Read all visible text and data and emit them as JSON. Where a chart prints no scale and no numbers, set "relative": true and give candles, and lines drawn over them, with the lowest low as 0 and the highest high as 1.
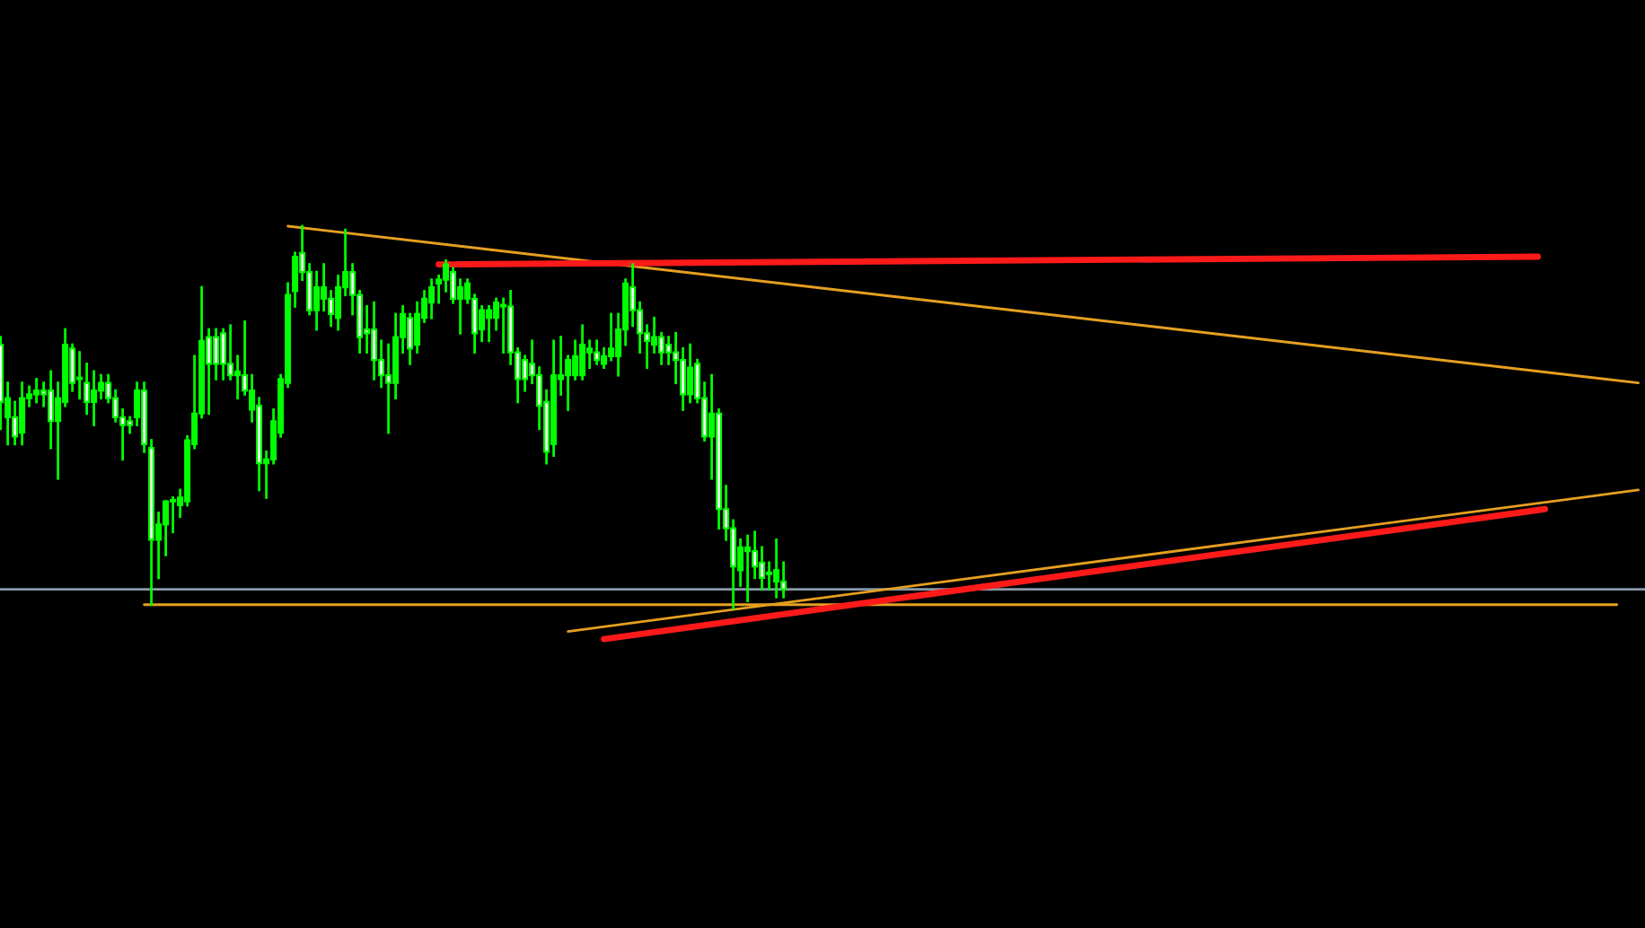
{
  "chart_data": {
    "type": "candlestick",
    "relative": true,
    "color": "#00ff00",
    "categories": [
      null,
      null,
      null,
      null,
      null,
      null,
      null,
      null,
      null,
      null,
      null,
      null,
      null,
      null,
      null,
      null,
      null,
      null,
      null,
      null,
      null,
      null,
      null,
      null,
      null,
      null,
      null,
      null,
      null,
      null,
      null,
      null,
      null,
      null,
      null,
      null,
      null,
      null,
      null,
      null,
      null,
      null,
      null,
      null,
      null,
      null,
      null,
      null,
      null,
      null,
      null,
      null,
      null,
      null,
      null,
      null,
      null,
      null,
      null,
      null,
      null,
      null,
      null,
      null,
      null,
      null,
      null,
      null,
      null,
      null,
      null,
      null,
      null,
      null,
      null,
      null,
      null,
      null,
      null,
      null,
      null,
      null,
      null,
      null,
      null,
      null,
      null,
      null,
      null,
      null,
      null,
      null,
      null,
      null,
      null,
      null,
      null,
      null,
      null,
      null,
      null,
      null,
      null,
      null,
      null,
      null,
      null,
      null,
      null,
      null,
      null,
      null,
      null,
      null,
      null,
      null,
      null,
      null,
      null,
      null,
      null,
      null,
      null,
      null,
      null,
      null,
      null,
      null,
      null,
      null,
      null,
      null,
      null,
      null,
      null,
      null,
      null,
      null,
      null,
      null,
      null,
      null,
      null,
      null,
      null,
      null,
      null,
      null,
      null,
      null,
      null,
      null,
      null,
      null,
      null,
      null,
      null,
      null,
      null,
      null,
      null,
      null,
      null,
      null,
      null,
      null,
      null,
      null,
      null,
      null,
      null,
      null,
      null,
      null,
      null,
      null,
      null,
      null,
      null,
      null,
      null,
      null,
      null,
      null,
      null,
      null,
      null,
      null,
      null,
      null,
      null,
      null,
      null,
      null,
      null,
      null,
      null,
      null,
      null,
      null,
      null,
      null,
      null,
      null,
      null,
      null,
      null,
      null,
      null,
      null,
      null,
      null,
      null,
      null,
      null,
      null,
      null,
      null,
      null,
      null,
      null,
      null,
      null,
      null,
      null,
      null,
      null,
      null,
      null
    ],
    "ohlc": [
      [
        0.69,
        0.71,
        0.47,
        0.54
      ],
      [
        0.5,
        0.59,
        0.43,
        0.55
      ],
      [
        0.5,
        0.54,
        0.43,
        0.45
      ],
      [
        0.46,
        0.59,
        0.43,
        0.55
      ],
      [
        0.55,
        0.58,
        0.53,
        0.56
      ],
      [
        0.56,
        0.6,
        0.54,
        0.57
      ],
      [
        0.57,
        0.59,
        0.53,
        0.56
      ],
      [
        0.57,
        0.62,
        0.42,
        0.49
      ],
      [
        0.49,
        0.59,
        0.34,
        0.55
      ],
      [
        0.54,
        0.73,
        0.53,
        0.69
      ],
      [
        0.68,
        0.69,
        0.57,
        0.59
      ],
      [
        0.6,
        0.67,
        0.55,
        0.6
      ],
      [
        0.59,
        0.64,
        0.51,
        0.54
      ],
      [
        0.54,
        0.62,
        0.48,
        0.57
      ],
      [
        0.57,
        0.61,
        0.55,
        0.59
      ],
      [
        0.59,
        0.61,
        0.54,
        0.55
      ],
      [
        0.55,
        0.57,
        0.49,
        0.5
      ],
      [
        0.5,
        0.52,
        0.39,
        0.48
      ],
      [
        0.49,
        0.5,
        0.46,
        0.48
      ],
      [
        0.5,
        0.59,
        0.48,
        0.57
      ],
      [
        0.57,
        0.59,
        0.41,
        0.43
      ],
      [
        0.42,
        0.44,
        0.01,
        0.18
      ],
      [
        0.18,
        0.25,
        0.08,
        0.22
      ],
      [
        0.22,
        0.28,
        0.14,
        0.28
      ],
      [
        0.28,
        0.29,
        0.2,
        0.28
      ],
      [
        0.27,
        0.31,
        0.24,
        0.29
      ],
      [
        0.28,
        0.45,
        0.27,
        0.44
      ],
      [
        0.43,
        0.66,
        0.42,
        0.51
      ],
      [
        0.51,
        0.84,
        0.5,
        0.7
      ],
      [
        0.71,
        0.73,
        0.51,
        0.64
      ],
      [
        0.71,
        0.73,
        0.6,
        0.64
      ],
      [
        0.72,
        0.73,
        0.6,
        0.64
      ],
      [
        0.64,
        0.74,
        0.6,
        0.61
      ],
      [
        0.61,
        0.66,
        0.55,
        0.62
      ],
      [
        0.61,
        0.75,
        0.56,
        0.57
      ],
      [
        0.52,
        0.61,
        0.49,
        0.57
      ],
      [
        0.53,
        0.55,
        0.31,
        0.38
      ],
      [
        0.38,
        0.41,
        0.29,
        0.39
      ],
      [
        0.39,
        0.52,
        0.38,
        0.49
      ],
      [
        0.46,
        0.61,
        0.45,
        0.6
      ],
      [
        0.59,
        0.85,
        0.58,
        0.82
      ],
      [
        0.83,
        0.93,
        0.79,
        0.92
      ],
      [
        0.93,
        1.0,
        0.86,
        0.88
      ],
      [
        0.88,
        0.9,
        0.77,
        0.78
      ],
      [
        0.78,
        0.88,
        0.73,
        0.84
      ],
      [
        0.81,
        0.9,
        0.78,
        0.84
      ],
      [
        0.81,
        0.83,
        0.74,
        0.77
      ],
      [
        0.76,
        0.87,
        0.73,
        0.84
      ],
      [
        0.84,
        0.99,
        0.82,
        0.88
      ],
      [
        0.88,
        0.9,
        0.77,
        0.82
      ],
      [
        0.82,
        0.83,
        0.67,
        0.71
      ],
      [
        0.73,
        0.79,
        0.67,
        0.72
      ],
      [
        0.73,
        0.8,
        0.6,
        0.65
      ],
      [
        0.65,
        0.7,
        0.58,
        0.61
      ],
      [
        0.61,
        0.69,
        0.46,
        0.59
      ],
      [
        0.59,
        0.77,
        0.55,
        0.71
      ],
      [
        0.71,
        0.79,
        0.67,
        0.77
      ],
      [
        0.76,
        0.77,
        0.64,
        0.68
      ],
      [
        0.69,
        0.8,
        0.67,
        0.77
      ],
      [
        0.76,
        0.83,
        0.75,
        0.81
      ],
      [
        0.8,
        0.86,
        0.76,
        0.84
      ],
      [
        0.85,
        0.87,
        0.8,
        0.86
      ],
      [
        0.86,
        0.91,
        0.83,
        0.9
      ],
      [
        0.88,
        0.89,
        0.8,
        0.81
      ],
      [
        0.81,
        0.86,
        0.72,
        0.84
      ],
      [
        0.81,
        0.86,
        0.8,
        0.85
      ],
      [
        0.81,
        0.82,
        0.67,
        0.72
      ],
      [
        0.73,
        0.79,
        0.7,
        0.78
      ],
      [
        0.76,
        0.79,
        0.7,
        0.78
      ],
      [
        0.76,
        0.81,
        0.73,
        0.8
      ],
      [
        0.79,
        0.81,
        0.67,
        0.79
      ],
      [
        0.79,
        0.83,
        0.64,
        0.67
      ],
      [
        0.67,
        0.68,
        0.54,
        0.6
      ],
      [
        0.65,
        0.66,
        0.57,
        0.6
      ],
      [
        0.64,
        0.7,
        0.59,
        0.61
      ],
      [
        0.61,
        0.63,
        0.47,
        0.53
      ],
      [
        0.54,
        0.57,
        0.38,
        0.41
      ],
      [
        0.43,
        0.7,
        0.4,
        0.61
      ],
      [
        0.6,
        0.71,
        0.56,
        0.61
      ],
      [
        0.61,
        0.66,
        0.52,
        0.65
      ],
      [
        0.61,
        0.7,
        0.6,
        0.66
      ],
      [
        0.61,
        0.74,
        0.6,
        0.69
      ],
      [
        0.67,
        0.7,
        0.63,
        0.68
      ],
      [
        0.67,
        0.7,
        0.64,
        0.65
      ],
      [
        0.64,
        0.68,
        0.63,
        0.66
      ],
      [
        0.66,
        0.77,
        0.65,
        0.68
      ],
      [
        0.66,
        0.77,
        0.61,
        0.73
      ],
      [
        0.73,
        0.86,
        0.69,
        0.85
      ],
      [
        0.84,
        0.9,
        0.74,
        0.78
      ],
      [
        0.78,
        0.8,
        0.67,
        0.72
      ],
      [
        0.72,
        0.74,
        0.63,
        0.7
      ],
      [
        0.69,
        0.76,
        0.67,
        0.71
      ],
      [
        0.71,
        0.72,
        0.64,
        0.67
      ],
      [
        0.69,
        0.71,
        0.64,
        0.67
      ],
      [
        0.67,
        0.72,
        0.59,
        0.65
      ],
      [
        0.65,
        0.68,
        0.52,
        0.56
      ],
      [
        0.56,
        0.69,
        0.54,
        0.63
      ],
      [
        0.64,
        0.65,
        0.54,
        0.55
      ],
      [
        0.55,
        0.59,
        0.44,
        0.45
      ],
      [
        0.45,
        0.61,
        0.34,
        0.51
      ],
      [
        0.51,
        0.52,
        0.21,
        0.26
      ],
      [
        0.26,
        0.32,
        0.18,
        0.21
      ],
      [
        0.21,
        0.23,
        0.0,
        0.11
      ],
      [
        0.1,
        0.18,
        0.06,
        0.16
      ],
      [
        0.15,
        0.19,
        0.02,
        0.16
      ],
      [
        0.15,
        0.2,
        0.08,
        0.11
      ],
      [
        0.12,
        0.16,
        0.05,
        0.08
      ],
      [
        0.09,
        0.12,
        0.05,
        0.09
      ],
      [
        0.07,
        0.18,
        0.03,
        0.1
      ],
      [
        0.07,
        0.12,
        0.03,
        0.05
      ],
      null,
      null,
      null,
      null,
      null,
      null,
      null,
      null,
      null,
      null,
      null,
      null,
      null,
      null,
      null,
      null,
      null,
      null,
      null,
      null,
      null,
      null,
      null,
      null,
      null,
      null,
      null,
      null,
      null,
      null,
      null,
      null,
      null,
      null,
      null,
      null,
      null,
      null,
      null,
      null,
      null,
      null,
      null,
      null,
      null,
      null,
      null,
      null,
      null,
      null,
      null,
      null,
      null,
      null,
      null,
      null,
      null,
      null,
      null,
      null,
      null,
      null,
      null,
      null,
      null,
      null,
      null,
      null,
      null,
      null,
      null,
      null,
      null,
      null,
      null,
      null,
      null,
      null,
      null,
      null,
      null,
      null,
      null,
      null,
      null,
      null,
      null,
      null,
      null,
      null,
      null,
      null,
      null,
      null,
      null,
      null,
      null,
      null,
      null,
      null,
      null,
      null,
      null,
      null,
      null,
      null,
      null,
      null,
      null,
      null,
      null,
      null,
      null,
      null,
      null,
      null,
      null,
      null,
      null
    ],
    "series": [
      {
        "type": "line",
        "color": "#e6a020",
        "values": [
          null,
          null,
          null,
          null,
          null,
          null,
          null,
          null,
          null,
          null,
          null,
          null,
          null,
          null,
          null,
          null,
          null,
          null,
          null,
          null,
          null,
          null,
          null,
          null,
          null,
          null,
          null,
          null,
          null,
          null,
          null,
          null,
          null,
          null,
          null,
          null,
          null,
          null,
          null,
          null,
          1.0,
          null,
          null,
          null,
          null,
          null,
          null,
          null,
          null,
          null,
          null,
          null,
          null,
          null,
          null,
          null,
          null,
          null,
          null,
          null,
          null,
          null,
          null,
          null,
          null,
          null,
          null,
          null,
          null,
          null,
          null,
          null,
          null,
          null,
          null,
          null,
          null,
          null,
          null,
          null,
          null,
          null,
          null,
          null,
          null,
          null,
          null,
          null,
          null,
          null,
          null,
          null,
          null,
          null,
          null,
          null,
          null,
          null,
          null,
          null,
          null,
          null,
          null,
          null,
          null,
          null,
          null,
          null,
          null,
          null,
          null,
          null,
          null,
          null,
          null,
          null,
          null,
          null,
          null,
          null,
          null,
          null,
          null,
          null,
          null,
          null,
          null,
          null,
          null,
          null,
          null,
          null,
          null,
          null,
          null,
          null,
          null,
          null,
          null,
          null,
          null,
          null,
          null,
          null,
          null,
          null,
          null,
          null,
          null,
          null,
          null,
          null,
          null,
          null,
          null,
          null,
          null,
          null,
          null,
          null,
          null,
          null,
          null,
          null,
          null,
          null,
          null,
          null,
          null,
          null,
          null,
          null,
          null,
          null,
          null,
          null,
          null,
          null,
          null,
          null,
          null,
          null,
          null,
          null,
          null,
          null,
          null,
          null,
          null,
          null,
          null,
          null,
          null,
          null,
          null,
          null,
          null,
          null,
          null,
          null,
          null,
          null,
          null,
          null,
          null,
          null,
          null,
          null,
          null,
          null,
          null,
          null,
          null,
          null,
          null,
          null,
          null,
          null,
          null,
          null,
          null,
          null,
          null,
          null,
          null,
          null,
          null,
          null,
          0.59
        ]
      },
      {
        "type": "line",
        "color": "#e6a020",
        "values": [
          null,
          null,
          null,
          null,
          null,
          null,
          null,
          null,
          null,
          null,
          null,
          null,
          null,
          null,
          null,
          null,
          null,
          null,
          null,
          null,
          null,
          null,
          null,
          null,
          null,
          null,
          null,
          null,
          null,
          null,
          null,
          null,
          null,
          null,
          null,
          null,
          null,
          null,
          null,
          null,
          null,
          null,
          null,
          null,
          null,
          null,
          null,
          null,
          null,
          null,
          null,
          null,
          null,
          null,
          null,
          null,
          null,
          null,
          null,
          null,
          null,
          null,
          null,
          null,
          null,
          null,
          null,
          null,
          null,
          null,
          null,
          null,
          null,
          null,
          null,
          null,
          null,
          null,
          null,
          -0.06,
          null,
          null,
          null,
          null,
          null,
          null,
          null,
          null,
          null,
          null,
          null,
          null,
          null,
          null,
          null,
          null,
          null,
          null,
          null,
          null,
          null,
          null,
          null,
          null,
          null,
          null,
          null,
          null,
          null,
          null,
          null,
          null,
          null,
          null,
          null,
          null,
          null,
          null,
          null,
          null,
          null,
          null,
          null,
          null,
          null,
          null,
          null,
          null,
          null,
          null,
          null,
          null,
          null,
          null,
          null,
          null,
          null,
          null,
          null,
          null,
          null,
          null,
          null,
          null,
          null,
          null,
          null,
          null,
          null,
          null,
          null,
          null,
          null,
          null,
          null,
          null,
          null,
          null,
          null,
          null,
          null,
          null,
          null,
          null,
          null,
          null,
          null,
          null,
          null,
          null,
          null,
          null,
          null,
          null,
          null,
          null,
          null,
          null,
          null,
          null,
          null,
          null,
          null,
          null,
          null,
          null,
          null,
          null,
          null,
          null,
          null,
          null,
          null,
          null,
          null,
          null,
          null,
          null,
          null,
          null,
          null,
          null,
          null,
          null,
          null,
          null,
          null,
          null,
          null,
          null,
          null,
          null,
          null,
          null,
          null,
          null,
          null,
          null,
          null,
          null,
          null,
          null,
          null,
          null,
          null,
          null,
          null,
          null,
          0.31
        ]
      },
      {
        "type": "line",
        "color": "#e6a020",
        "values": [
          null,
          null,
          null,
          null,
          null,
          null,
          null,
          null,
          null,
          null,
          null,
          null,
          null,
          null,
          null,
          null,
          null,
          null,
          null,
          null,
          0.01,
          null,
          null,
          null,
          null,
          null,
          null,
          null,
          null,
          null,
          null,
          null,
          null,
          null,
          null,
          null,
          null,
          null,
          null,
          null,
          null,
          null,
          null,
          null,
          null,
          null,
          null,
          null,
          null,
          null,
          null,
          null,
          null,
          null,
          null,
          null,
          null,
          null,
          null,
          null,
          null,
          null,
          null,
          null,
          null,
          null,
          null,
          null,
          null,
          null,
          null,
          null,
          null,
          null,
          null,
          null,
          null,
          null,
          null,
          null,
          null,
          null,
          null,
          null,
          null,
          null,
          null,
          null,
          null,
          null,
          null,
          null,
          null,
          null,
          null,
          null,
          null,
          null,
          null,
          null,
          null,
          null,
          null,
          null,
          null,
          null,
          null,
          null,
          null,
          null,
          null,
          null,
          null,
          null,
          null,
          null,
          null,
          null,
          null,
          null,
          null,
          null,
          null,
          null,
          null,
          null,
          null,
          null,
          null,
          null,
          null,
          null,
          null,
          null,
          null,
          null,
          null,
          null,
          null,
          null,
          null,
          null,
          null,
          null,
          null,
          null,
          null,
          null,
          null,
          null,
          null,
          null,
          null,
          null,
          null,
          null,
          null,
          null,
          null,
          null,
          null,
          null,
          null,
          null,
          null,
          null,
          null,
          null,
          null,
          null,
          null,
          null,
          null,
          null,
          null,
          null,
          null,
          null,
          null,
          null,
          null,
          null,
          null,
          null,
          null,
          null,
          null,
          null,
          null,
          null,
          null,
          null,
          null,
          null,
          null,
          null,
          null,
          null,
          null,
          null,
          null,
          null,
          null,
          null,
          null,
          null,
          null,
          null,
          null,
          null,
          null,
          null,
          null,
          null,
          null,
          null,
          null,
          null,
          null,
          null,
          null,
          null,
          null,
          null,
          null,
          0.01,
          null,
          null,
          null
        ]
      },
      {
        "type": "line",
        "color": "#ff1a1a",
        "values": [
          null,
          null,
          null,
          null,
          null,
          null,
          null,
          null,
          null,
          null,
          null,
          null,
          null,
          null,
          null,
          null,
          null,
          null,
          null,
          null,
          null,
          null,
          null,
          null,
          null,
          null,
          null,
          null,
          null,
          null,
          null,
          null,
          null,
          null,
          null,
          null,
          null,
          null,
          null,
          null,
          null,
          null,
          null,
          null,
          null,
          null,
          null,
          null,
          null,
          null,
          null,
          null,
          null,
          null,
          null,
          null,
          null,
          null,
          null,
          null,
          null,
          0.9,
          null,
          null,
          null,
          null,
          null,
          null,
          null,
          null,
          null,
          null,
          null,
          null,
          null,
          null,
          null,
          null,
          null,
          null,
          null,
          null,
          null,
          null,
          null,
          null,
          null,
          null,
          null,
          null,
          null,
          null,
          null,
          null,
          null,
          null,
          null,
          null,
          null,
          null,
          null,
          null,
          null,
          null,
          null,
          null,
          null,
          null,
          null,
          null,
          null,
          null,
          null,
          null,
          null,
          null,
          null,
          null,
          null,
          null,
          null,
          null,
          null,
          null,
          null,
          null,
          null,
          null,
          null,
          null,
          null,
          null,
          null,
          null,
          null,
          null,
          null,
          null,
          null,
          null,
          null,
          null,
          null,
          null,
          null,
          null,
          null,
          null,
          null,
          null,
          null,
          null,
          null,
          null,
          null,
          null,
          null,
          null,
          null,
          null,
          null,
          null,
          null,
          null,
          null,
          null,
          null,
          null,
          null,
          null,
          null,
          null,
          null,
          null,
          null,
          null,
          null,
          null,
          null,
          null,
          null,
          null,
          null,
          null,
          null,
          null,
          null,
          null,
          null,
          null,
          null,
          null,
          null,
          null,
          null,
          null,
          null,
          null,
          null,
          null,
          null,
          null,
          null,
          null,
          null,
          null,
          null,
          null,
          null,
          null,
          null,
          null,
          null,
          null,
          0.92,
          null,
          null,
          null,
          null,
          null,
          null,
          null,
          null,
          null,
          null,
          null,
          null,
          null,
          null
        ]
      },
      {
        "type": "line",
        "color": "#ff1a1a",
        "values": [
          null,
          null,
          null,
          null,
          null,
          null,
          null,
          null,
          null,
          null,
          null,
          null,
          null,
          null,
          null,
          null,
          null,
          null,
          null,
          null,
          null,
          null,
          null,
          null,
          null,
          null,
          null,
          null,
          null,
          null,
          null,
          null,
          null,
          null,
          null,
          null,
          null,
          null,
          null,
          null,
          null,
          null,
          null,
          null,
          null,
          null,
          null,
          null,
          null,
          null,
          null,
          null,
          null,
          null,
          null,
          null,
          null,
          null,
          null,
          null,
          null,
          null,
          null,
          null,
          null,
          null,
          null,
          null,
          null,
          null,
          null,
          null,
          null,
          null,
          null,
          null,
          null,
          null,
          null,
          null,
          null,
          null,
          null,
          null,
          -0.08,
          null,
          null,
          null,
          null,
          null,
          null,
          null,
          null,
          null,
          null,
          null,
          null,
          null,
          null,
          null,
          null,
          null,
          null,
          null,
          null,
          null,
          null,
          null,
          null,
          null,
          null,
          null,
          null,
          null,
          null,
          null,
          null,
          null,
          null,
          null,
          null,
          null,
          null,
          null,
          null,
          null,
          null,
          null,
          null,
          null,
          null,
          null,
          null,
          null,
          null,
          null,
          null,
          null,
          null,
          null,
          null,
          null,
          null,
          null,
          null,
          null,
          null,
          null,
          null,
          null,
          null,
          null,
          null,
          null,
          null,
          null,
          null,
          null,
          null,
          null,
          null,
          null,
          null,
          null,
          null,
          null,
          null,
          null,
          null,
          null,
          null,
          null,
          null,
          null,
          null,
          null,
          null,
          null,
          null,
          null,
          null,
          null,
          null,
          null,
          null,
          null,
          null,
          null,
          null,
          null,
          null,
          null,
          null,
          null,
          null,
          null,
          null,
          null,
          null,
          null,
          null,
          null,
          null,
          null,
          null,
          null,
          null,
          null,
          null,
          null,
          null,
          null,
          null,
          null,
          null,
          0.26,
          null,
          null,
          null,
          null,
          null,
          null,
          null,
          null,
          null,
          null,
          null,
          null,
          null
        ]
      }
    ],
    "ref_lines": [
      {
        "axis": "y",
        "value": 0.05,
        "color": "#8a9aaa"
      }
    ]
  }
}
